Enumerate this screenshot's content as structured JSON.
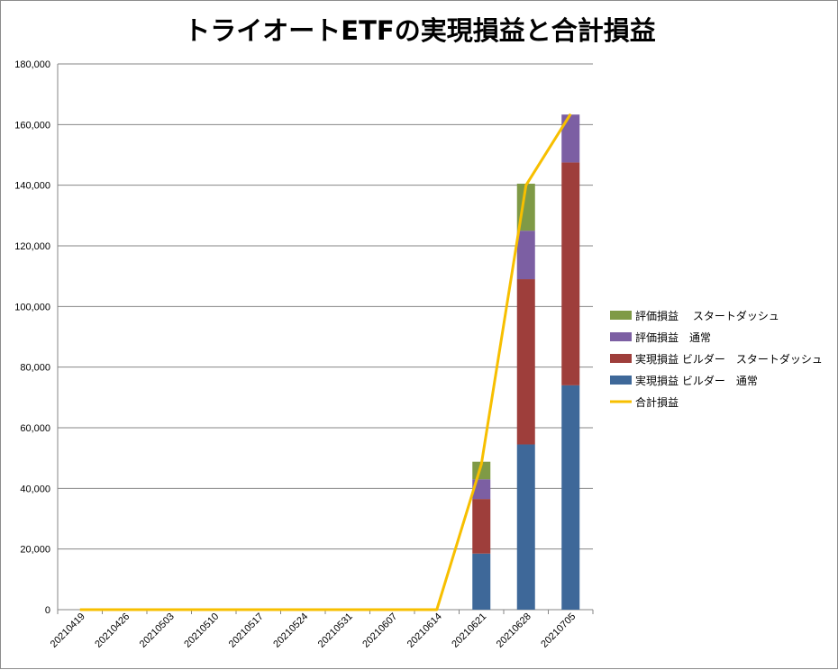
{
  "chart_data": {
    "type": "bar",
    "title": "トライオートETFの実現損益と合計損益",
    "categories": [
      "20210419",
      "20210426",
      "20210503",
      "20210510",
      "20210517",
      "20210524",
      "20210531",
      "20210607",
      "20210614",
      "20210621",
      "20210628",
      "20210705"
    ],
    "series": [
      {
        "name": "実現損益 ビルダー　通常",
        "type": "bar",
        "color": "#3e6899",
        "values": [
          0,
          0,
          0,
          0,
          0,
          0,
          0,
          0,
          0,
          18500,
          54500,
          74000
        ]
      },
      {
        "name": "実現損益 ビルダー　スタートダッシュ",
        "type": "bar",
        "color": "#9e3e3b",
        "values": [
          0,
          0,
          0,
          0,
          0,
          0,
          0,
          0,
          0,
          18000,
          54500,
          73500
        ]
      },
      {
        "name": "評価損益　通常",
        "type": "bar",
        "color": "#7c5fa3",
        "values": [
          0,
          0,
          0,
          0,
          0,
          0,
          0,
          0,
          0,
          6500,
          16000,
          15800
        ]
      },
      {
        "name": "評価損益　 スタートダッシュ",
        "type": "bar",
        "color": "#7f9a46",
        "values": [
          0,
          0,
          0,
          0,
          0,
          0,
          0,
          0,
          0,
          5800,
          15500,
          0
        ]
      },
      {
        "name": "合計損益",
        "type": "line",
        "color": "#f7bf00",
        "values": [
          0,
          0,
          0,
          0,
          0,
          0,
          0,
          0,
          0,
          48000,
          140000,
          163500
        ]
      }
    ],
    "legend_order": [
      3,
      2,
      1,
      0,
      4
    ],
    "ylim": [
      0,
      180000
    ],
    "yticks": [
      "0",
      "20,000",
      "40,000",
      "60,000",
      "80,000",
      "100,000",
      "120,000",
      "140,000",
      "160,000",
      "180,000"
    ],
    "grid": true,
    "legend_position": "right"
  }
}
